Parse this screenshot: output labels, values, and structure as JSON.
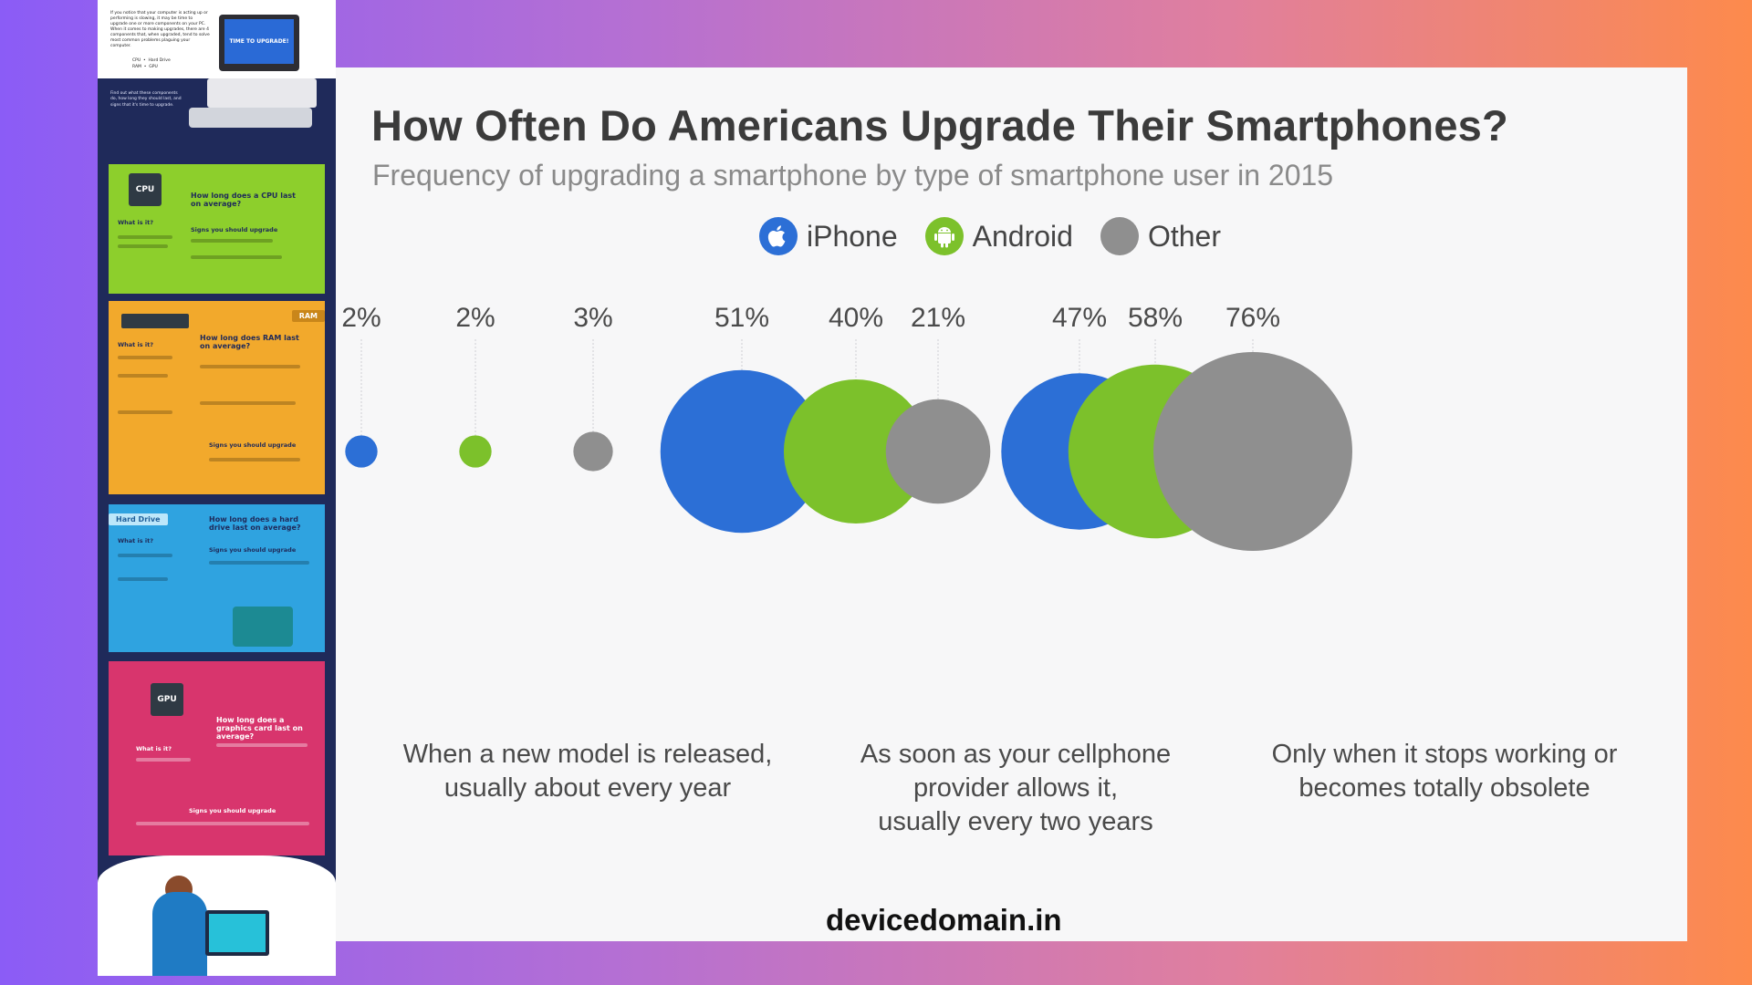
{
  "chart_data": {
    "type": "bubble",
    "title": "How Often Do Americans Upgrade Their Smartphones?",
    "subtitle": "Frequency of upgrading a smartphone by type of smartphone user in 2015",
    "legend": [
      {
        "name": "iPhone",
        "color": "#2c6fd6",
        "icon": "apple-icon"
      },
      {
        "name": "Android",
        "color": "#7cc12b",
        "icon": "android-icon"
      },
      {
        "name": "Other",
        "color": "#8f8f8f",
        "icon": "dot"
      }
    ],
    "categories": [
      "When a new model is released,\nusually about every year",
      "As soon as your cellphone\nprovider allows it,\nusually every two years",
      "Only when it stops working or\nbecomes totally obsolete"
    ],
    "series": [
      {
        "name": "iPhone",
        "values": [
          2,
          51,
          47
        ]
      },
      {
        "name": "Android",
        "values": [
          2,
          40,
          58
        ]
      },
      {
        "name": "Other",
        "values": [
          3,
          21,
          76
        ]
      }
    ],
    "value_labels": [
      [
        "2%",
        "2%",
        "3%"
      ],
      [
        "51%",
        "40%",
        "21%"
      ],
      [
        "47%",
        "58%",
        "76%"
      ]
    ],
    "unit": "%"
  },
  "left_panel": {
    "intro_text": "If you notice that your computer is acting up or performing is slowing, it may be time to upgrade one or more components on your PC. When it comes to making upgrades, there are 4 components that, when upgraded, tend to solve most common problems plaguing your computer.",
    "intro_list": "CPU  •  Hard Drive\nRAM  •  GPU",
    "monitor_text": "TIME TO UPGRADE!",
    "dark_note": "Find out what these components do, how long they should last, and signs that it's time to upgrade.",
    "cpu": {
      "chip": "CPU",
      "question": "How long does a CPU last on average?",
      "what": "What is it?",
      "signs": "Signs you should upgrade"
    },
    "ram": {
      "tag": "RAM",
      "question": "How long does RAM last on average?",
      "what": "What is it?",
      "signs": "Signs you should upgrade"
    },
    "hdd": {
      "tag": "Hard Drive",
      "question": "How long does a hard drive last on average?",
      "what": "What is it?",
      "signs": "Signs you should upgrade"
    },
    "gpu": {
      "chip": "GPU",
      "question": "How long does a graphics card last on average?",
      "what": "What is it?",
      "signs": "Signs you should upgrade"
    }
  },
  "watermark": "devicedomain.in"
}
